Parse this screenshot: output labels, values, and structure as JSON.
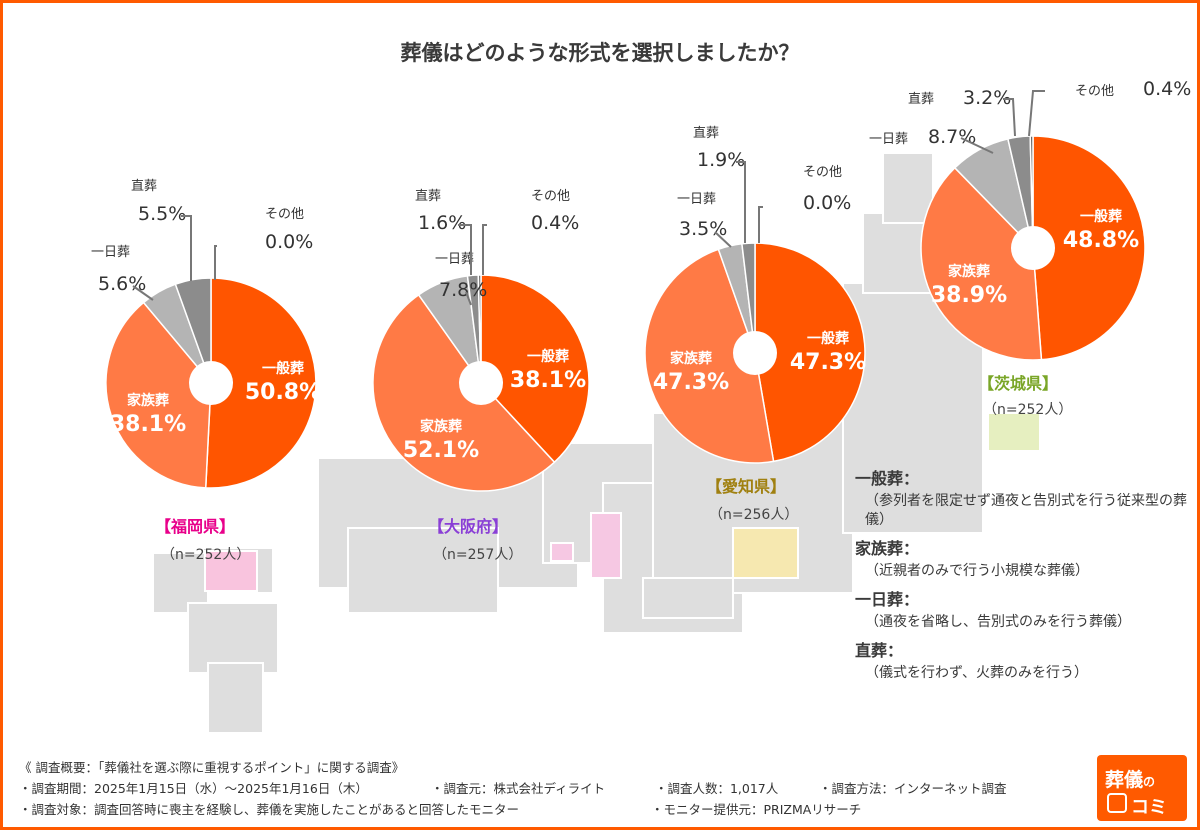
{
  "title": "葬儀はどのような形式を選択しましたか？",
  "chart_data": [
    {
      "type": "pie",
      "region": "【福岡県】",
      "n": "（n=252人）",
      "slices": [
        {
          "name": "一般葬",
          "value": 50.8,
          "label": "50.8%"
        },
        {
          "name": "家族葬",
          "value": 38.1,
          "label": "38.1%"
        },
        {
          "name": "一日葬",
          "value": 5.6,
          "label": "5.6%"
        },
        {
          "name": "直葬",
          "value": 5.5,
          "label": "5.5%"
        },
        {
          "name": "その他",
          "value": 0.0,
          "label": "0.0%"
        }
      ]
    },
    {
      "type": "pie",
      "region": "【大阪府】",
      "n": "（n=257人）",
      "slices": [
        {
          "name": "一般葬",
          "value": 38.1,
          "label": "38.1%"
        },
        {
          "name": "家族葬",
          "value": 52.1,
          "label": "52.1%"
        },
        {
          "name": "一日葬",
          "value": 7.8,
          "label": "7.8%"
        },
        {
          "name": "直葬",
          "value": 1.6,
          "label": "1.6%"
        },
        {
          "name": "その他",
          "value": 0.4,
          "label": "0.4%"
        }
      ]
    },
    {
      "type": "pie",
      "region": "【愛知県】",
      "n": "（n=256人）",
      "slices": [
        {
          "name": "一般葬",
          "value": 47.3,
          "label": "47.3%"
        },
        {
          "name": "家族葬",
          "value": 47.3,
          "label": "47.3%"
        },
        {
          "name": "一日葬",
          "value": 3.5,
          "label": "3.5%"
        },
        {
          "name": "直葬",
          "value": 1.9,
          "label": "1.9%"
        },
        {
          "name": "その他",
          "value": 0.0,
          "label": "0.0%"
        }
      ]
    },
    {
      "type": "pie",
      "region": "【茨城県】",
      "n": "（n=252人）",
      "slices": [
        {
          "name": "一般葬",
          "value": 48.8,
          "label": "48.8%"
        },
        {
          "name": "家族葬",
          "value": 38.9,
          "label": "38.9%"
        },
        {
          "name": "一日葬",
          "value": 8.7,
          "label": "8.7%"
        },
        {
          "name": "直葬",
          "value": 3.2,
          "label": "3.2%"
        },
        {
          "name": "その他",
          "value": 0.4,
          "label": "0.4%"
        }
      ]
    }
  ],
  "legend": [
    {
      "term": "一般葬：",
      "desc": "（参列者を限定せず通夜と告別式を行う従来型の葬儀）"
    },
    {
      "term": "家族葬：",
      "desc": "（近親者のみで行う小規模な葬儀）"
    },
    {
      "term": "一日葬：",
      "desc": "（通夜を省略し、告別式のみを行う葬儀）"
    },
    {
      "term": "直葬：",
      "desc": "（儀式を行わず、火葬のみを行う）"
    }
  ],
  "survey": {
    "heading": "《 調査概要：「葬儀社を選ぶ際に重視するポイント」に関する調査》",
    "period": "・調査期間：2025年1月15日（水）～2025年1月16日（木）",
    "source": "・調査元：株式会社ディライト",
    "count": "・調査人数：1,017人",
    "method": "・調査方法：インターネット調査",
    "target": "・調査対象：調査回答時に喪主を経験し、葬儀を実施したことがあると回答したモニター",
    "provider": "・モニター提供元：PRIZMAリサーチ"
  },
  "logo": {
    "line1": "葬儀",
    "line1_small": "の",
    "line2": "コミ"
  },
  "colors": {
    "ippan": "#ff5500",
    "kazoku": "#ff7a45",
    "ichinichi": "#b4b4b4",
    "chokuso": "#8c8c8c",
    "other": "#666666",
    "accent": "#ff5a00",
    "fukuoka": "#e8008a",
    "osaka": "#8a3fd6",
    "aichi": "#a08010",
    "ibaraki": "#7aa628",
    "map": "#dedede"
  }
}
